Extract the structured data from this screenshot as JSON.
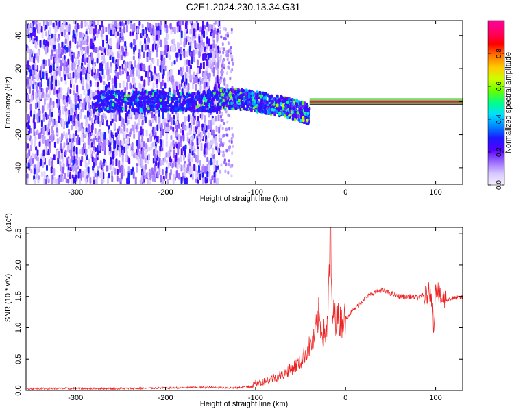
{
  "title": "C2E1.2024.230.13.34.G31",
  "colors": {
    "line": "#ee2222",
    "axis": "#000000"
  },
  "chart_data": [
    {
      "type": "heatmap",
      "xlabel": "Height of straight line (km)",
      "ylabel": "Frequency (Hz)",
      "xlim": [
        -355,
        130
      ],
      "ylim": [
        -50,
        49
      ],
      "xticks": [
        -300,
        -200,
        -100,
        0,
        100
      ],
      "xtick_labels": [
        "-300",
        "-200",
        "-100",
        "0",
        "100"
      ],
      "yticks": [
        -40,
        -20,
        0,
        20,
        40
      ],
      "ytick_labels": [
        "-40",
        "-20",
        "0",
        "20",
        "40"
      ],
      "colorbar": {
        "label": "Normalized spectral amplitude",
        "range": [
          0,
          1
        ],
        "ticks": [
          0.0,
          0.2,
          0.4,
          0.6,
          0.8
        ],
        "tick_labels": [
          "0.0",
          "0.2",
          "0.4",
          "0.6",
          "0.8"
        ],
        "colormap": [
          "#f4f0ff",
          "#d6c7ff",
          "#9966ff",
          "#5500ff",
          "#1a1aff",
          "#0088ff",
          "#00e0ff",
          "#00ff88",
          "#66ff00",
          "#ccff00",
          "#ffcc00",
          "#ff7700",
          "#ff0000",
          "#ff0066",
          "#ff0099"
        ]
      },
      "features": [
        {
          "name": "noise",
          "x_range": [
            -355,
            -140
          ],
          "freq_spread": 49,
          "amplitude": 0.15
        },
        {
          "name": "central band",
          "x_range": [
            -280,
            -140
          ],
          "freq_center": 0,
          "amplitude": 0.45
        },
        {
          "name": "descending band",
          "x": [
            -140,
            -110,
            -90,
            -70,
            -55,
            -40
          ],
          "freq": [
            2,
            1,
            -1,
            -3,
            -5,
            -8
          ],
          "amplitude": 0.55
        },
        {
          "name": "stable tone",
          "x_range": [
            -40,
            130
          ],
          "freq_center": 0,
          "amplitude": 0.95
        }
      ]
    },
    {
      "type": "line",
      "xlabel": "Height of straight line (km)",
      "ylabel": "SNR (10 * v/v)",
      "y_multiplier_label": "(x10",
      "y_multiplier_exp": "4",
      "y_multiplier_close": ")",
      "xlim": [
        -355,
        130
      ],
      "ylim": [
        0,
        2.6
      ],
      "xticks": [
        -300,
        -200,
        -100,
        0,
        100
      ],
      "xtick_labels": [
        "-300",
        "-200",
        "-100",
        "0",
        "100"
      ],
      "yticks": [
        0.0,
        0.5,
        1.0,
        1.5,
        2.0,
        2.5
      ],
      "ytick_labels": [
        "0.0",
        "0.5",
        "1.0",
        "1.5",
        "2.0",
        "2.5"
      ],
      "series": [
        {
          "x": [
            -355,
            -300,
            -250,
            -200,
            -150,
            -120,
            -105,
            -90,
            -80,
            -70,
            -60,
            -50,
            -45,
            -40,
            -35,
            -30,
            -25,
            -20,
            -17,
            -15,
            -10,
            -5,
            0,
            10,
            20,
            30,
            40,
            50,
            60,
            70,
            80,
            90,
            95,
            98,
            100,
            105,
            110,
            120,
            130
          ],
          "y": [
            0.03,
            0.03,
            0.03,
            0.04,
            0.05,
            0.04,
            0.08,
            0.15,
            0.2,
            0.25,
            0.35,
            0.45,
            0.6,
            0.7,
            0.8,
            1.2,
            0.9,
            1.0,
            2.6,
            1.2,
            1.15,
            1.1,
            1.15,
            1.3,
            1.45,
            1.55,
            1.6,
            1.55,
            1.5,
            1.5,
            1.48,
            1.5,
            1.6,
            1.0,
            1.7,
            1.45,
            1.45,
            1.47,
            1.48
          ]
        }
      ]
    }
  ]
}
